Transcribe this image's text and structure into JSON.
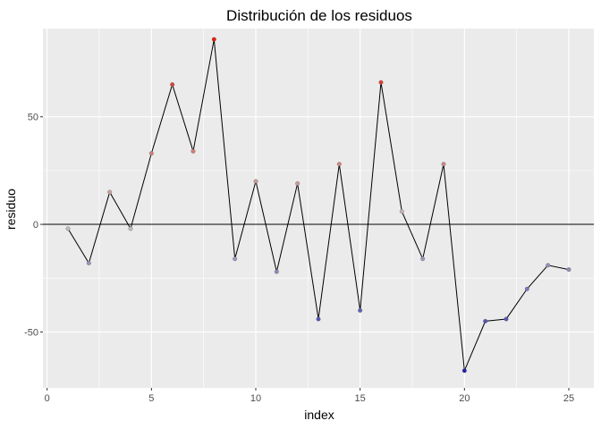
{
  "chart_data": {
    "type": "line",
    "title": "Distribución de los residuos",
    "xlabel": "index",
    "ylabel": "residuo",
    "xlim": [
      -0.2,
      26.2
    ],
    "ylim": [
      -76,
      91
    ],
    "x_ticks": [
      0,
      5,
      10,
      15,
      20,
      25
    ],
    "x_tick_labels": [
      "0",
      "5",
      "10",
      "15",
      "20",
      "25"
    ],
    "y_ticks": [
      -50,
      0,
      50
    ],
    "y_tick_labels": [
      "-50",
      "0",
      "50"
    ],
    "grid": true,
    "hline": 0,
    "x": [
      1,
      2,
      3,
      4,
      5,
      6,
      7,
      8,
      9,
      10,
      11,
      12,
      13,
      14,
      15,
      16,
      17,
      18,
      19,
      20,
      21,
      22,
      23,
      24,
      25
    ],
    "y": [
      -2,
      -18,
      15,
      -2,
      33,
      65,
      34,
      86,
      -16,
      20,
      -22,
      19,
      -44,
      28,
      -40,
      66,
      6,
      -16,
      28,
      -68,
      -45,
      -44,
      -30,
      -19,
      -21
    ],
    "color_scale": {
      "low": "#1f1fb0",
      "mid": "#bfbfbf",
      "high": "#e81a0a"
    },
    "background_color": "#ebebeb",
    "grid_color": "#ffffff"
  }
}
